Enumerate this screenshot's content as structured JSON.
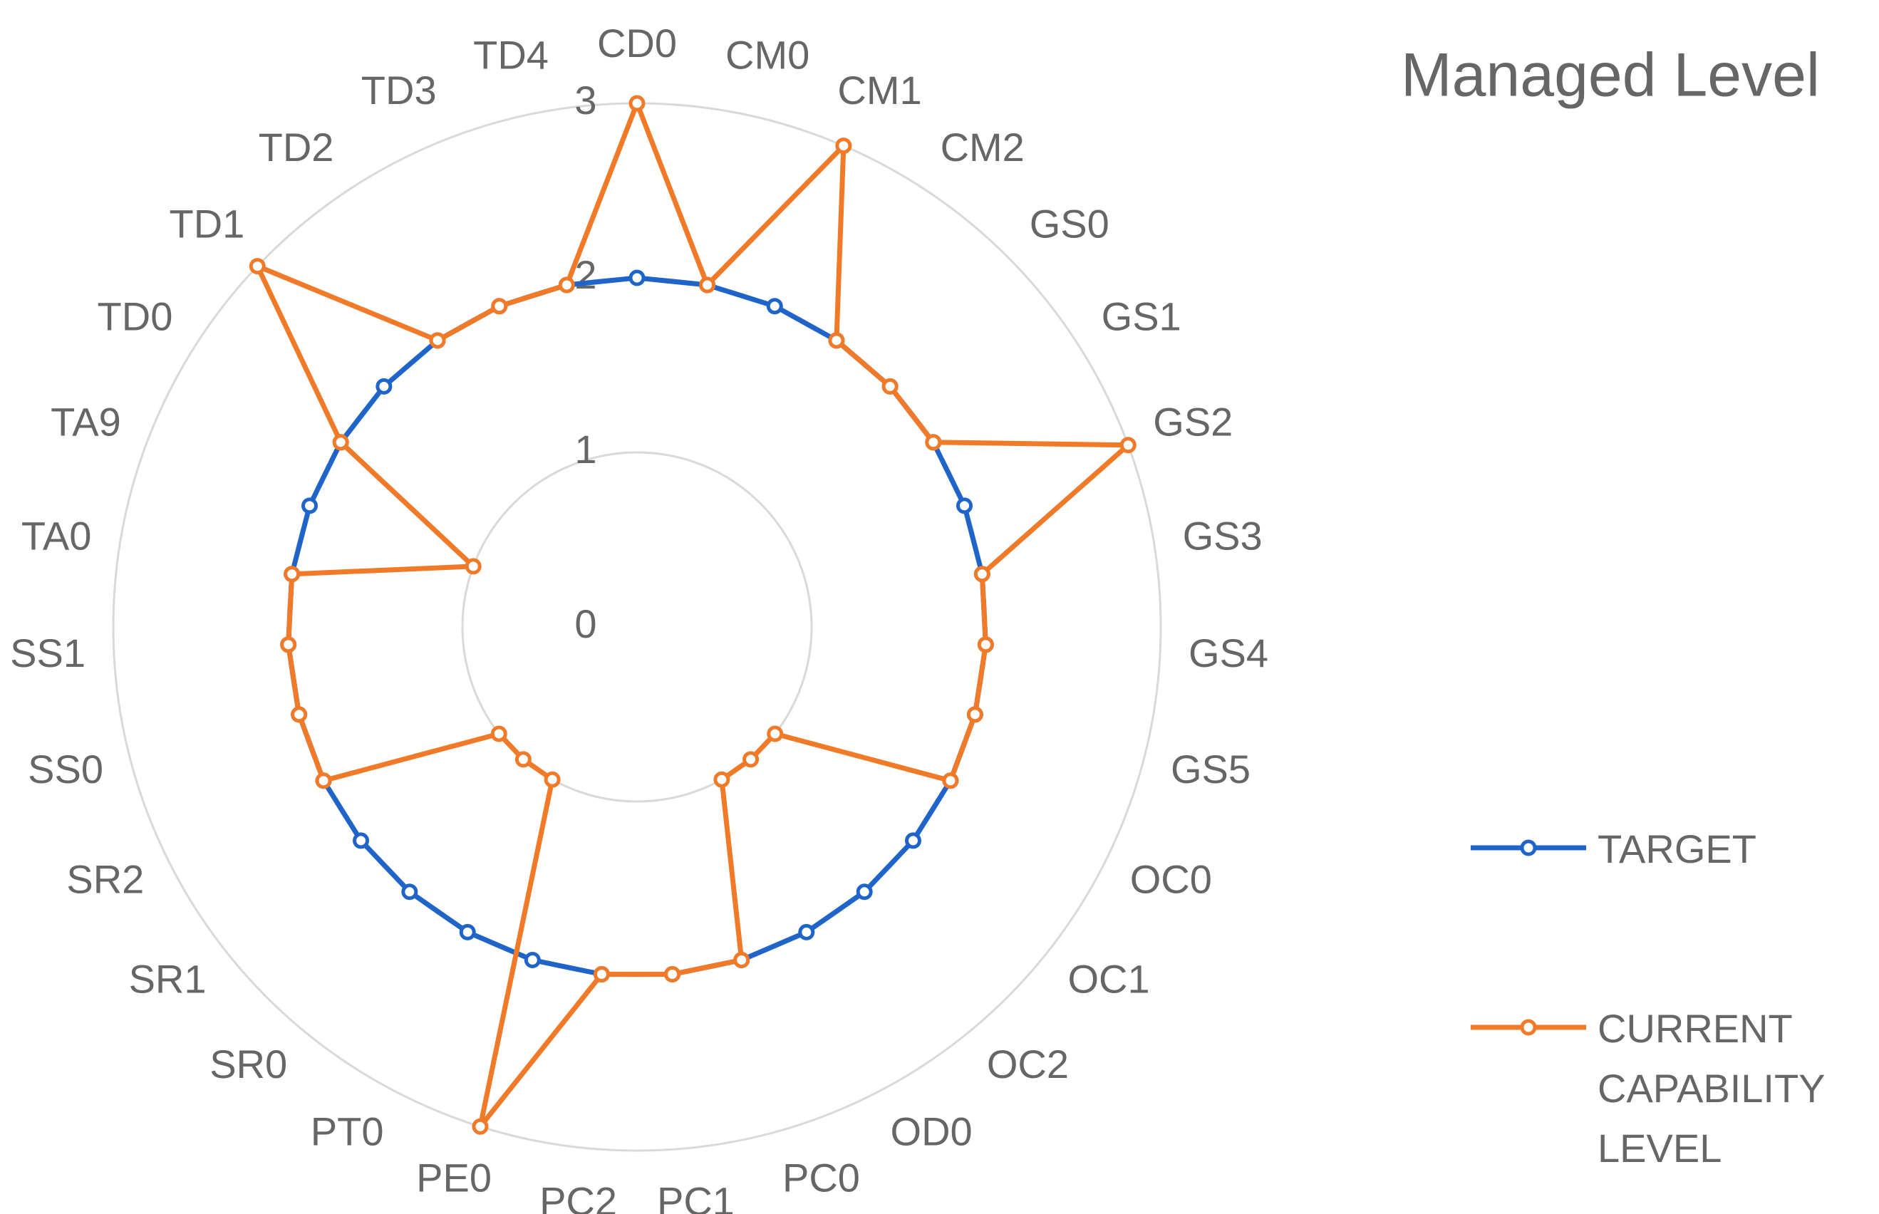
{
  "chart_data": {
    "type": "radar",
    "title": "Managed Level",
    "categories": [
      "CD0",
      "CM0",
      "CM1",
      "CM2",
      "GS0",
      "GS1",
      "GS2",
      "GS3",
      "GS4",
      "GS5",
      "OC0",
      "OC1",
      "OC2",
      "OD0",
      "PC0",
      "PC1",
      "PC2",
      "PE0",
      "PT0",
      "SR0",
      "SR1",
      "SR2",
      "SS0",
      "SS1",
      "TA0",
      "TA9",
      "TD0",
      "TD1",
      "TD2",
      "TD3",
      "TD4"
    ],
    "series": [
      {
        "name": "TARGET",
        "color": "#1f64c8",
        "values": [
          2,
          2,
          2,
          2,
          2,
          2,
          2,
          2,
          2,
          2,
          2,
          2,
          2,
          2,
          2,
          2,
          2,
          2,
          2,
          2,
          2,
          2,
          2,
          2,
          2,
          2,
          2,
          2,
          2,
          2,
          2
        ]
      },
      {
        "name": "CURRENT CAPABILITY LEVEL",
        "color": "#f07a28",
        "values": [
          3,
          2,
          3,
          2,
          2,
          2,
          3,
          2,
          2,
          2,
          2,
          1,
          1,
          1,
          2,
          2,
          2,
          3,
          1,
          1,
          1,
          2,
          2,
          2,
          2,
          1,
          2,
          3,
          2,
          2,
          2
        ]
      }
    ],
    "ylim": [
      0,
      3
    ],
    "yticks": [
      0,
      1,
      2,
      3
    ],
    "grid": true
  }
}
